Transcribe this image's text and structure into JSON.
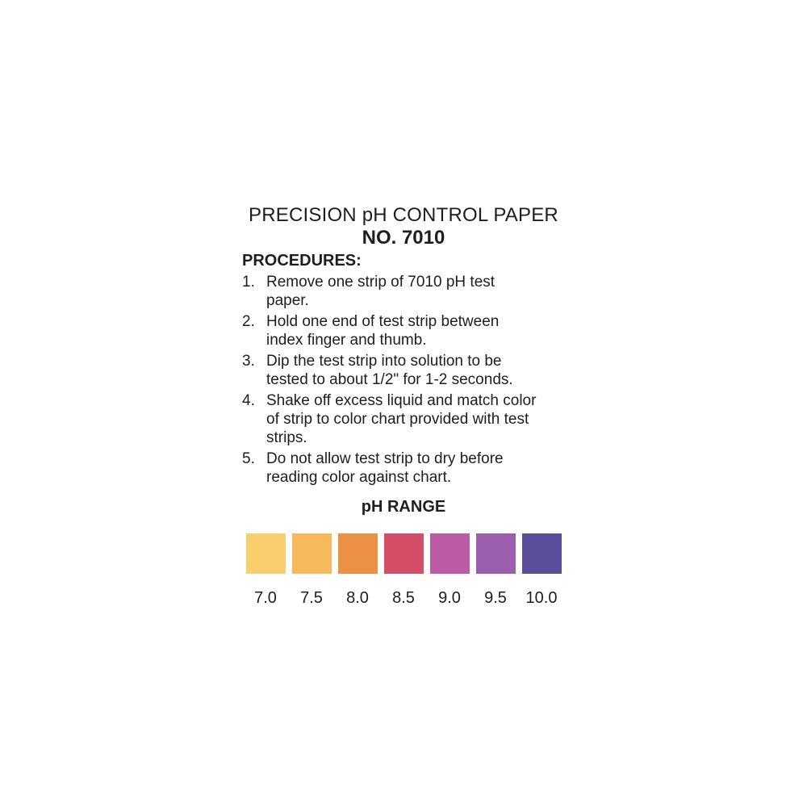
{
  "document": {
    "title_line1": "PRECISION pH CONTROL PAPER",
    "title_line2": "NO. 7010",
    "procedures_heading": "PROCEDURES:",
    "procedures": [
      {
        "num": "1.",
        "text": "Remove one strip of 7010 pH test paper."
      },
      {
        "num": "2.",
        "text": "Hold one end of test strip between index finger and thumb."
      },
      {
        "num": "3.",
        "text": "Dip the test strip into solution to be tested to about 1/2\" for 1-2 seconds."
      },
      {
        "num": "4.",
        "text": "Shake off excess liquid and match color of strip to color chart provided with test strips."
      },
      {
        "num": "5.",
        "text": "Do not allow test strip to dry before reading color against chart."
      }
    ],
    "ph_range_heading": "pH RANGE",
    "swatches": [
      {
        "ph": "7.0",
        "color": "#F9CE6C"
      },
      {
        "ph": "7.5",
        "color": "#F7B95C"
      },
      {
        "ph": "8.0",
        "color": "#EC9143"
      },
      {
        "ph": "8.5",
        "color": "#D44E68"
      },
      {
        "ph": "9.0",
        "color": "#BB5BA5"
      },
      {
        "ph": "9.5",
        "color": "#9C5FAE"
      },
      {
        "ph": "10.0",
        "color": "#5B4D9C"
      }
    ],
    "colors": {
      "text": "#1e1e1e",
      "background": "#ffffff"
    }
  }
}
